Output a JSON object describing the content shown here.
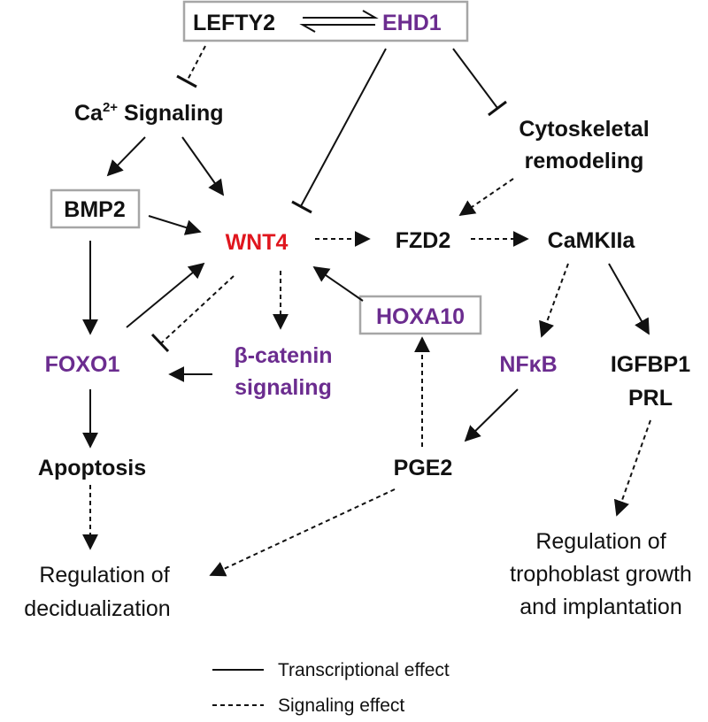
{
  "colors": {
    "black": "#111111",
    "purple": "#6b2c8f",
    "red": "#e0161e",
    "box_border": "#a6a6a6"
  },
  "nodes": {
    "lefty2": "LEFTY2",
    "ehd1": "EHD1",
    "ca_prefix": "Ca",
    "ca_sup": "2+",
    "ca_suffix": " Signaling",
    "cytoskeletal_line1": "Cytoskeletal",
    "cytoskeletal_line2": "remodeling",
    "bmp2": "BMP2",
    "wnt4": "WNT4",
    "fzd2": "FZD2",
    "camk": "CaMKIIa",
    "hoxa10": "HOXA10",
    "foxo1": "FOXO1",
    "bcat_line1": "β-catenin",
    "bcat_line2": "signaling",
    "nfkb": "NFκB",
    "igfbp1": "IGFBP1",
    "prl": "PRL",
    "apoptosis": "Apoptosis",
    "pge2": "PGE2",
    "decid_line1": "Regulation of",
    "decid_line2": "decidualization",
    "troph_line1": "Regulation of",
    "troph_line2": "trophoblast growth",
    "troph_line3": "and implantation"
  },
  "legend": {
    "transcriptional": "Transcriptional effect",
    "signaling": "Signaling effect"
  }
}
